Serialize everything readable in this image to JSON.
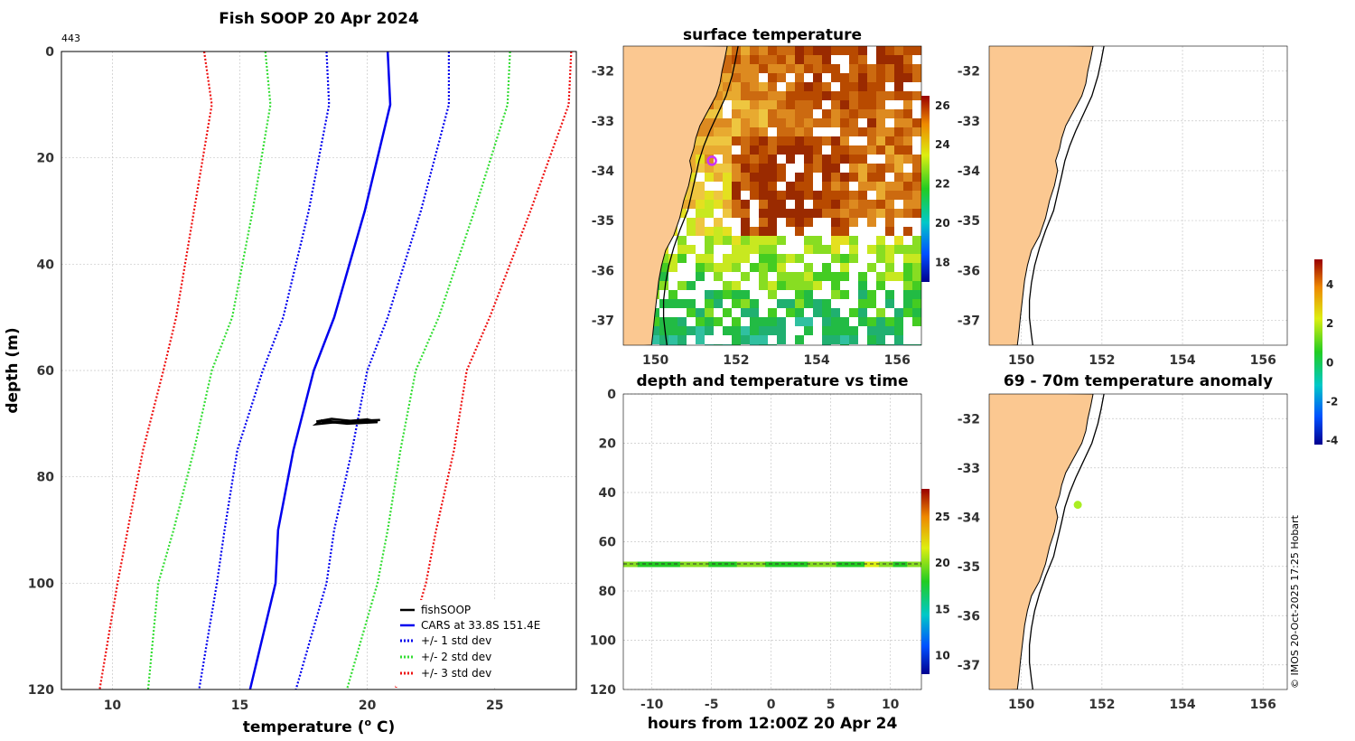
{
  "chart_data": [
    {
      "id": "profile",
      "type": "line",
      "title": "Fish SOOP 20 Apr 2024",
      "corner_label": "443",
      "xlabel": "temperature (",
      "xlabel_sup": "o",
      "xlabel_unit": " C)",
      "ylabel": "depth (m)",
      "xlim": [
        8,
        28.2
      ],
      "ylim": [
        0,
        120
      ],
      "xticks": [
        10,
        15,
        20,
        25
      ],
      "yticks": [
        0,
        20,
        40,
        60,
        80,
        100,
        120
      ],
      "depths": [
        0,
        10,
        30,
        50,
        60,
        75,
        90,
        100,
        120
      ],
      "series": [
        {
          "name": "CARS at 33.8S 151.4E",
          "color": "#0000ee",
          "style": "solid",
          "values": [
            20.8,
            20.9,
            19.9,
            18.7,
            17.9,
            17.1,
            16.5,
            16.4,
            15.4
          ]
        },
        {
          "name": "+/- 1 std dev",
          "color": "#0000ee",
          "style": "dotted",
          "values": [
            23.2,
            23.2,
            22.1,
            20.8,
            20.0,
            19.4,
            18.7,
            18.4,
            17.2
          ],
          "lower": [
            18.4,
            18.5,
            17.7,
            16.7,
            15.9,
            14.9,
            14.4,
            14.1,
            13.4
          ]
        },
        {
          "name": "+/- 2 std dev",
          "color": "#33dd33",
          "style": "dotted",
          "values": [
            25.6,
            25.5,
            24.2,
            22.8,
            21.9,
            21.3,
            20.8,
            20.4,
            19.2
          ],
          "lower": [
            16.0,
            16.2,
            15.5,
            14.7,
            13.9,
            13.2,
            12.4,
            11.8,
            11.4
          ]
        },
        {
          "name": "+/- 3 std dev",
          "color": "#ee1111",
          "style": "dotted",
          "values": [
            28.0,
            27.9,
            26.4,
            24.8,
            23.9,
            23.4,
            22.7,
            22.3,
            21.1
          ],
          "lower": [
            13.6,
            13.9,
            13.2,
            12.5,
            12.0,
            11.2,
            10.6,
            10.2,
            9.5
          ]
        },
        {
          "name": "fishSOOP",
          "color": "#000000",
          "style": "solid",
          "temps": [
            18.0,
            18.6,
            19.4,
            20.5,
            19.1,
            18.2,
            18.0,
            19.0,
            20.0,
            20.4,
            19.2,
            18.1
          ],
          "depths": [
            69.6,
            69.1,
            69.5,
            69.3,
            69.8,
            69.4,
            70.1,
            69.6,
            69.2,
            69.7,
            70.0,
            69.5
          ]
        }
      ],
      "legend": [
        "fishSOOP",
        "CARS at 33.8S 151.4E",
        "+/- 1 std dev",
        "+/- 2 std dev",
        "+/- 3 std dev"
      ],
      "legend_position": "bottom-right"
    },
    {
      "id": "sst_map",
      "type": "heatmap",
      "title": "surface temperature",
      "xlim": [
        149.2,
        156.6
      ],
      "ylim": [
        -37.5,
        -31.5
      ],
      "xticks": [
        150,
        152,
        154,
        156
      ],
      "yticks": [
        -32,
        -33,
        -34,
        -35,
        -36,
        -37
      ],
      "colorbar": {
        "range": [
          17,
          26.5
        ],
        "ticks": [
          18,
          20,
          22,
          24,
          26
        ]
      },
      "marker": {
        "lon": 151.4,
        "lat": -33.8,
        "color": "#cc33ff"
      }
    },
    {
      "id": "time_section",
      "type": "scatter",
      "title": "depth and temperature vs time",
      "xlabel": "hours from 12:00Z 20 Apr 24",
      "ylabel": "",
      "xlim": [
        -12.4,
        12.6
      ],
      "ylim": [
        0,
        120
      ],
      "xticks": [
        -10,
        -5,
        0,
        5,
        10
      ],
      "yticks": [
        0,
        20,
        40,
        60,
        80,
        100,
        120
      ],
      "depth_m": 69,
      "temps": [
        19.4,
        18.2,
        17.5,
        18.8,
        20.1,
        19.0,
        17.8,
        18.5,
        20.4,
        19.2,
        18.0,
        17.4,
        18.9,
        20.2,
        19.1,
        17.9,
        18.6,
        20.5,
        19.3,
        18.1,
        19.8
      ],
      "colorbar": {
        "range": [
          8,
          28
        ],
        "ticks": [
          10,
          15,
          20,
          25
        ]
      }
    },
    {
      "id": "map_empty",
      "type": "scatter",
      "title": "",
      "xlim": [
        149.2,
        156.6
      ],
      "ylim": [
        -37.5,
        -31.5
      ],
      "xticks": [
        150,
        152,
        154,
        156
      ],
      "yticks": [
        -32,
        -33,
        -34,
        -35,
        -36,
        -37
      ]
    },
    {
      "id": "anomaly_map",
      "type": "scatter",
      "title": "69 - 70m temperature anomaly",
      "xlim": [
        149.2,
        156.6
      ],
      "ylim": [
        -37.5,
        -31.5
      ],
      "xticks": [
        150,
        152,
        154,
        156
      ],
      "yticks": [
        -32,
        -33,
        -34,
        -35,
        -36,
        -37
      ],
      "point": {
        "lon": 151.4,
        "lat": -33.75,
        "anomaly": 0.6
      },
      "colorbar": {
        "range": [
          -4.2,
          5.3
        ],
        "ticks": [
          -4,
          -2,
          0,
          2,
          4
        ]
      }
    }
  ],
  "footer": {
    "credit": "© IMOS 20-Oct-2025 17:25 Hobart"
  },
  "colors": {
    "land": "#fbc891",
    "grid": "#c8c8c8"
  }
}
